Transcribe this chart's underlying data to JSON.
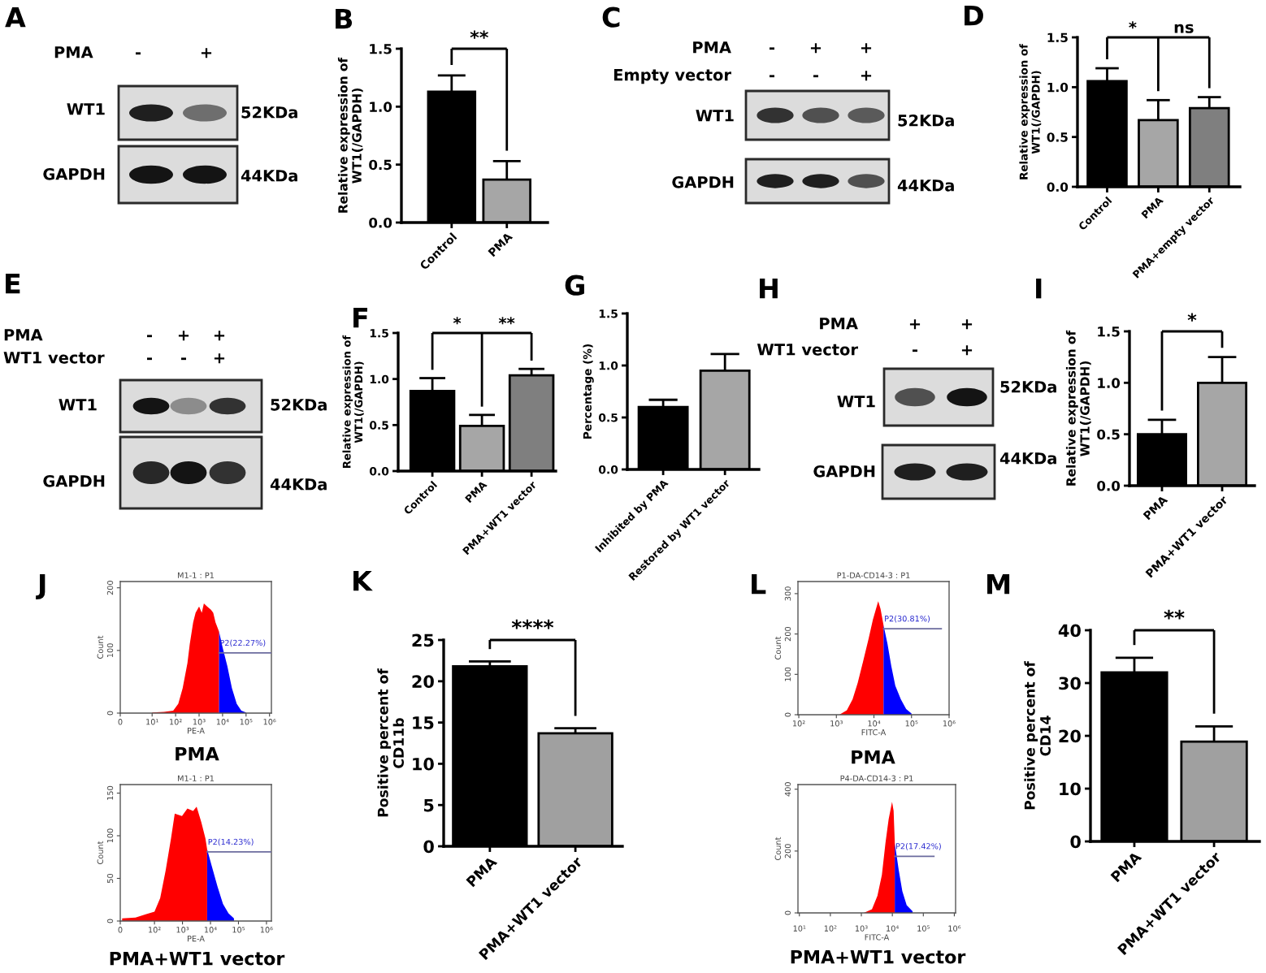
{
  "chart_data": [
    {
      "type": "other",
      "title": "A",
      "annotations": [
        "PMA",
        "-",
        "+",
        "WT1",
        "52KDa",
        "GAPDH",
        "44KDa"
      ]
    },
    {
      "type": "bar",
      "title": "B",
      "categories": [
        "Control",
        "PMA"
      ],
      "values": [
        1.13,
        0.37
      ],
      "colors": [
        "#000000",
        "#a6a6a6"
      ],
      "errors": [
        [
          1.13,
          1.27
        ],
        [
          0.37,
          0.53
        ]
      ],
      "ylabel": "Relative expression of\nWT1(/GAPDH)",
      "ylim": [
        0,
        1.5
      ],
      "yticks": [
        {
          "value": 0,
          "label": "0.0"
        },
        {
          "value": 0.5,
          "label": "0.5"
        },
        {
          "value": 1,
          "label": "1.0"
        },
        {
          "value": 1.5,
          "label": "1.5"
        }
      ],
      "annotations": [
        "**"
      ]
    },
    {
      "type": "other",
      "title": "C",
      "annotations": [
        "PMA",
        "-",
        "+",
        "+",
        "Empty vector",
        "-",
        "-",
        "+",
        "WT1",
        "52KDa",
        "GAPDH",
        "44KDa"
      ]
    },
    {
      "type": "bar",
      "title": "D",
      "categories": [
        "Control",
        "PMA",
        "PMA+empty vector"
      ],
      "values": [
        1.06,
        0.67,
        0.79
      ],
      "colors": [
        "#000000",
        "#a6a6a6",
        "#7f7f7f"
      ],
      "errors": [
        [
          1.06,
          1.19
        ],
        [
          0.67,
          0.87
        ],
        [
          0.79,
          0.9
        ]
      ],
      "ylabel": "Relative expression of\nWT1(/GAPDH)",
      "ylim": [
        0,
        1.5
      ],
      "yticks": [
        {
          "value": 0,
          "label": "0.0"
        },
        {
          "value": 0.5,
          "label": "0.5"
        },
        {
          "value": 1,
          "label": "1.0"
        },
        {
          "value": 1.5,
          "label": "1.5"
        }
      ],
      "annotations": [
        "*",
        "ns"
      ]
    },
    {
      "type": "other",
      "title": "E",
      "annotations": [
        "PMA",
        "-",
        "+",
        "+",
        "WT1 vector",
        "-",
        "-",
        "+",
        "WT1",
        "52KDa",
        "GAPDH",
        "44KDa"
      ]
    },
    {
      "type": "bar",
      "title": "F",
      "categories": [
        "Control",
        "PMA",
        "PMA+WT1 vector"
      ],
      "values": [
        0.87,
        0.49,
        1.04
      ],
      "colors": [
        "#000000",
        "#a6a6a6",
        "#7f7f7f"
      ],
      "errors": [
        [
          0.87,
          1.01
        ],
        [
          0.49,
          0.61
        ],
        [
          1.04,
          1.11
        ]
      ],
      "ylabel": "Relative expression of\nWT1(/GAPDH)",
      "ylim": [
        0,
        1.5
      ],
      "yticks": [
        {
          "value": 0,
          "label": "0.0"
        },
        {
          "value": 0.5,
          "label": "0.5"
        },
        {
          "value": 1,
          "label": "1.0"
        },
        {
          "value": 1.5,
          "label": "1.5"
        }
      ],
      "annotations": [
        "*",
        "**"
      ]
    },
    {
      "type": "bar",
      "title": "G",
      "categories": [
        "Inhibited by PMA",
        "Restored by WT1 vector"
      ],
      "values": [
        0.6,
        0.95
      ],
      "colors": [
        "#000000",
        "#a6a6a6"
      ],
      "errors": [
        [
          0.6,
          0.67
        ],
        [
          0.95,
          1.11
        ]
      ],
      "ylabel": "Percentage (%)",
      "ylim": [
        0,
        1.5
      ],
      "yticks": [
        {
          "value": 0,
          "label": "0.0"
        },
        {
          "value": 0.5,
          "label": "0.5"
        },
        {
          "value": 1,
          "label": "1.0"
        },
        {
          "value": 1.5,
          "label": "1.5"
        }
      ]
    },
    {
      "type": "other",
      "title": "H",
      "annotations": [
        "PMA",
        "+",
        "+",
        "WT1 vector",
        "-",
        "+",
        "WT1",
        "52KDa",
        "GAPDH",
        "44KDa"
      ]
    },
    {
      "type": "bar",
      "title": "I",
      "categories": [
        "PMA",
        "PMA+WT1 vector"
      ],
      "values": [
        0.5,
        1.0
      ],
      "colors": [
        "#000000",
        "#a6a6a6"
      ],
      "errors": [
        [
          0.5,
          0.64
        ],
        [
          1.0,
          1.25
        ]
      ],
      "ylabel": "Relative expression of\nWT1(/GAPDH)",
      "ylim": [
        0,
        1.5
      ],
      "yticks": [
        {
          "value": 0,
          "label": "0.0"
        },
        {
          "value": 0.5,
          "label": "0.5"
        },
        {
          "value": 1,
          "label": "1.0"
        },
        {
          "value": 1.5,
          "label": "1.5"
        }
      ],
      "annotations": [
        "*"
      ]
    },
    {
      "type": "area",
      "title": "J",
      "subtitle": "M1-1 : P1",
      "xlabel": "PE-A",
      "ylabel": "Count",
      "log": "x",
      "xlim": [
        0,
        1200000
      ],
      "xticks": [
        {
          "value": 0,
          "label": "0"
        },
        {
          "value": 10,
          "label": "10¹"
        },
        {
          "value": 100,
          "label": "10²"
        },
        {
          "value": 1000,
          "label": "10³"
        },
        {
          "value": 10000,
          "label": "10⁴"
        },
        {
          "value": 100000,
          "label": "10⁵"
        },
        {
          "value": 1000000,
          "label": "10⁶"
        }
      ],
      "ylim": [
        0,
        210
      ],
      "yticks": [
        0,
        100,
        200
      ],
      "series": [
        {
          "color": "#ff0000",
          "x": [
            10,
            32,
            79,
            130,
            200,
            320,
            400,
            560,
            710,
            1000,
            1300,
            1600,
            2200,
            3200,
            4000,
            5000,
            7100
          ],
          "values": [
            1,
            2,
            4,
            15,
            40,
            80,
            110,
            145,
            160,
            170,
            160,
            175,
            170,
            165,
            160,
            145,
            130
          ]
        },
        {
          "color": "#0000ff",
          "x": [
            7100,
            10000,
            16000,
            25000,
            40000,
            63000,
            100000
          ],
          "values": [
            130,
            105,
            75,
            40,
            15,
            4,
            1
          ]
        },
        {
          "type": "line",
          "color": "#6b6b9e",
          "x": [
            7100,
            1200000
          ],
          "values": [
            96,
            96
          ]
        }
      ],
      "annotations": [
        "PMA",
        {
          "text": "P2(22.27%)",
          "x": 7100,
          "y": 96
        }
      ]
    },
    {
      "type": "area",
      "subtitle": "M1-1 : P1",
      "xlabel": "PE-A",
      "ylabel": "Count",
      "log": "x",
      "xlim": [
        0,
        1500000
      ],
      "xticks": [
        {
          "value": 0,
          "label": "0"
        },
        {
          "value": 100,
          "label": "10²"
        },
        {
          "value": 1000,
          "label": "10³"
        },
        {
          "value": 10000,
          "label": "10⁴"
        },
        {
          "value": 100000,
          "label": "10⁵"
        },
        {
          "value": 1000000,
          "label": "10⁶"
        }
      ],
      "ylim": [
        0,
        160
      ],
      "yticks": [
        0,
        50,
        100,
        150
      ],
      "series": [
        {
          "color": "#ff0000",
          "x": [
            7,
            21,
            51,
            100,
            160,
            250,
            390,
            530,
            960,
            1500,
            2400,
            3200,
            4700,
            6600,
            7600
          ],
          "values": [
            3,
            4,
            8,
            11,
            27,
            59,
            97,
            126,
            123,
            132,
            129,
            134,
            116,
            97,
            84
          ]
        },
        {
          "color": "#0000ff",
          "x": [
            7600,
            11000,
            18000,
            28000,
            44000,
            69000
          ],
          "values": [
            84,
            65,
            40,
            20,
            9,
            3
          ]
        },
        {
          "type": "line",
          "color": "#6b6b9e",
          "x": [
            7600,
            1500000
          ],
          "values": [
            81,
            81
          ]
        }
      ],
      "annotations": [
        "PMA+WT1 vector",
        {
          "text": "P2(14.23%)",
          "x": 7600,
          "y": 81
        }
      ]
    },
    {
      "type": "bar",
      "title": "K",
      "categories": [
        "PMA",
        "PMA+WT1 vector"
      ],
      "values": [
        21.8,
        13.7
      ],
      "colors": [
        "#000000",
        "#a0a0a0"
      ],
      "errors": [
        [
          21.8,
          22.4
        ],
        [
          13.7,
          14.3
        ]
      ],
      "ylabel": "Positive percent of\nCD11b",
      "ylim": [
        0,
        25
      ],
      "yticks": [
        0,
        5,
        10,
        15,
        20,
        25
      ],
      "annotations": [
        "****"
      ]
    },
    {
      "type": "area",
      "title": "L",
      "subtitle": "P1-DA-CD14-3 : P1",
      "xlabel": "FITC-A",
      "ylabel": "Count",
      "log": "x",
      "xlim": [
        95,
        1000000
      ],
      "xticks": [
        {
          "value": 100,
          "label": "10²"
        },
        {
          "value": 1000,
          "label": "10³"
        },
        {
          "value": 10000,
          "label": "10⁴"
        },
        {
          "value": 100000,
          "label": "10⁵"
        },
        {
          "value": 1000000,
          "label": "10⁶"
        }
      ],
      "ylim": [
        0,
        330
      ],
      "yticks": [
        0,
        100,
        200,
        300
      ],
      "series": [
        {
          "color": "#ff0000",
          "x": [
            1200,
            1900,
            2700,
            3700,
            5200,
            7200,
            9400,
            12000,
            13000,
            15000,
            18000
          ],
          "values": [
            0,
            11,
            38,
            79,
            134,
            188,
            236,
            270,
            281,
            262,
            222
          ]
        },
        {
          "color": "#0000ff",
          "x": [
            18000,
            23000,
            29000,
            37000,
            52000,
            72000,
            100000
          ],
          "values": [
            222,
            175,
            120,
            72,
            38,
            14,
            3
          ]
        },
        {
          "type": "line",
          "color": "#6b6b9e",
          "x": [
            18000,
            620000
          ],
          "values": [
            213,
            213
          ]
        }
      ],
      "annotations": [
        "PMA",
        {
          "text": "P2(30.81%)",
          "x": 18000,
          "y": 213
        }
      ]
    },
    {
      "type": "area",
      "subtitle": "P4-DA-CD14-3 : P1",
      "xlabel": "FITC-A",
      "ylabel": "Count",
      "log": "x",
      "xlim": [
        9,
        1100000
      ],
      "xticks": [
        {
          "value": 10,
          "label": "10¹"
        },
        {
          "value": 100,
          "label": "10²"
        },
        {
          "value": 1000,
          "label": "10³"
        },
        {
          "value": 10000,
          "label": "10⁴"
        },
        {
          "value": 100000,
          "label": "10⁵"
        },
        {
          "value": 1000000,
          "label": "10⁶"
        }
      ],
      "ylim": [
        0,
        415
      ],
      "yticks": [
        0,
        200,
        400
      ],
      "series": [
        {
          "color": "#ff0000",
          "x": [
            1200,
            2200,
            3300,
            4600,
            6000,
            7600,
            9800,
            11000,
            12000
          ],
          "values": [
            0,
            12,
            55,
            123,
            226,
            303,
            359,
            330,
            226
          ]
        },
        {
          "color": "#0000ff",
          "x": [
            12000,
            16000,
            21000,
            29000,
            45000
          ],
          "values": [
            226,
            140,
            70,
            25,
            5
          ]
        },
        {
          "type": "line",
          "color": "#6b6b9e",
          "x": [
            12000,
            220000
          ],
          "values": [
            183,
            183
          ]
        }
      ],
      "annotations": [
        "PMA+WT1 vector",
        {
          "text": "P2(17.42%)",
          "x": 12000,
          "y": 183
        }
      ]
    },
    {
      "type": "bar",
      "title": "M",
      "categories": [
        "PMA",
        "PMA+WT1 vector"
      ],
      "values": [
        32,
        18.9
      ],
      "colors": [
        "#000000",
        "#a0a0a0"
      ],
      "errors": [
        [
          32,
          34.8
        ],
        [
          18.9,
          21.8
        ]
      ],
      "ylabel": "Positive percent of\nCD14",
      "ylim": [
        0,
        40
      ],
      "yticks": [
        0,
        10,
        20,
        30,
        40
      ],
      "annotations": [
        "**"
      ]
    }
  ]
}
